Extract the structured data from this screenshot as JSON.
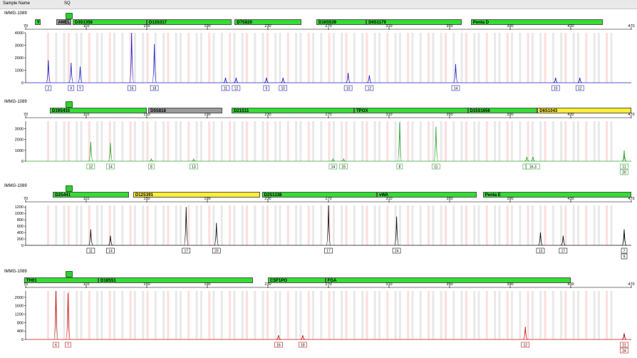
{
  "header": {
    "sample_name_label": "Sample Name",
    "sq_label": "SQ"
  },
  "colors": {
    "ladder_green": "#33dd33",
    "gray": "#999999",
    "yellow": "#ffee33",
    "highlight_bins": "#ffd6d6",
    "bins": "#e4e4e4"
  },
  "chart_data": [
    {
      "type": "line",
      "sample": "IMMG-1089",
      "dye_color": "#2222cc",
      "x_ticks": [
        70,
        110,
        150,
        190,
        230,
        270,
        310,
        350,
        390,
        430,
        470
      ],
      "y_ticks": [
        0,
        1000,
        2000,
        3000,
        4000
      ],
      "ylim": [
        0,
        4000
      ],
      "xlim": [
        70,
        470
      ],
      "markers": [
        {
          "name": "Yfi...",
          "start": 76,
          "end": 80,
          "color": "#33dd33"
        },
        {
          "name": "AMEL",
          "start": 90,
          "end": 100,
          "color": "#999999"
        },
        {
          "name": "D3S1358",
          "start": 101,
          "end": 150,
          "color": "#33dd33"
        },
        {
          "name": "D13S317",
          "start": 150,
          "end": 206,
          "color": "#33dd33"
        },
        {
          "name": "D7S820",
          "start": 208,
          "end": 252,
          "color": "#33dd33"
        },
        {
          "name": "D16S539",
          "start": 262,
          "end": 295,
          "color": "#33dd33"
        },
        {
          "name": "D6S1179",
          "start": 295,
          "end": 358,
          "color": "#33dd33"
        },
        {
          "name": "Penta D",
          "start": 364,
          "end": 451,
          "color": "#33dd33"
        }
      ],
      "peaks": [
        {
          "x": 85,
          "y": 1800,
          "label": "2"
        },
        {
          "x": 100,
          "y": 1600,
          "label": "X"
        },
        {
          "x": 106,
          "y": 1300,
          "label": "Y"
        },
        {
          "x": 140,
          "y": 4000,
          "label": "16"
        },
        {
          "x": 155,
          "y": 3100,
          "label": "18"
        },
        {
          "x": 202,
          "y": 400,
          "label": "11"
        },
        {
          "x": 209,
          "y": 400,
          "label": "12"
        },
        {
          "x": 229,
          "y": 400,
          "label": "9"
        },
        {
          "x": 240,
          "y": 400,
          "label": "10"
        },
        {
          "x": 283,
          "y": 800,
          "label": "10"
        },
        {
          "x": 297,
          "y": 600,
          "label": "12"
        },
        {
          "x": 354,
          "y": 1500,
          "label": "14"
        },
        {
          "x": 420,
          "y": 400,
          "label": "10"
        },
        {
          "x": 436,
          "y": 400,
          "label": "12"
        }
      ]
    },
    {
      "type": "line",
      "sample": "IMMG-1089",
      "dye_color": "#33aa33",
      "x_ticks": [
        70,
        110,
        150,
        190,
        230,
        270,
        310,
        350,
        390,
        430,
        470
      ],
      "y_ticks": [
        0,
        1000,
        2000,
        3000
      ],
      "ylim": [
        0,
        3700
      ],
      "xlim": [
        70,
        470
      ],
      "markers": [
        {
          "name": "D19S433",
          "start": 86,
          "end": 150,
          "color": "#33dd33"
        },
        {
          "name": "D5S818",
          "start": 151,
          "end": 200,
          "color": "#999999"
        },
        {
          "name": "D21S11",
          "start": 206,
          "end": 287,
          "color": "#33dd33"
        },
        {
          "name": "TPOX",
          "start": 287,
          "end": 362,
          "color": "#33dd33"
        },
        {
          "name": "D15S1656",
          "start": 362,
          "end": 408,
          "color": "#33dd33"
        },
        {
          "name": "D6S1043",
          "start": 408,
          "end": 470,
          "color": "#ffee33"
        }
      ],
      "peaks": [
        {
          "x": 113,
          "y": 1800,
          "label": "12"
        },
        {
          "x": 126,
          "y": 1700,
          "label": "14"
        },
        {
          "x": 153,
          "y": 200,
          "label": "8"
        },
        {
          "x": 181,
          "y": 200,
          "label": "13"
        },
        {
          "x": 273,
          "y": 200,
          "label": "14"
        },
        {
          "x": 280,
          "y": 200,
          "label": "15"
        },
        {
          "x": 317,
          "y": 3600,
          "label": "8"
        },
        {
          "x": 341,
          "y": 3200,
          "label": "11"
        },
        {
          "x": 401,
          "y": 400,
          "label": "16"
        },
        {
          "x": 405,
          "y": 400,
          "label": "16.3"
        },
        {
          "x": 468,
          "y": 1000,
          "label": "11"
        },
        {
          "x": 530,
          "y": 500,
          "label": "20"
        }
      ]
    },
    {
      "type": "line",
      "sample": "IMMG-1089",
      "dye_color": "#111111",
      "x_ticks": [
        70,
        110,
        150,
        190,
        230,
        270,
        310,
        350,
        390,
        430,
        470
      ],
      "y_ticks": [
        0,
        200,
        400,
        600,
        800,
        1000,
        1200
      ],
      "ylim": [
        0,
        1250
      ],
      "xlim": [
        70,
        470
      ],
      "markers": [
        {
          "name": "D2S441",
          "start": 88,
          "end": 138,
          "color": "#33dd33"
        },
        {
          "name": "D12S391",
          "start": 141,
          "end": 225,
          "color": "#ffee33"
        },
        {
          "name": "D2S1338",
          "start": 226,
          "end": 302,
          "color": "#33dd33"
        },
        {
          "name": "vWA",
          "start": 302,
          "end": 368,
          "color": "#33dd33"
        },
        {
          "name": "Penta E",
          "start": 372,
          "end": 470,
          "color": "#33dd33"
        }
      ],
      "peaks": [
        {
          "x": 113,
          "y": 500,
          "label": "11"
        },
        {
          "x": 126,
          "y": 300,
          "label": "14"
        },
        {
          "x": 176,
          "y": 1200,
          "label": "17"
        },
        {
          "x": 196,
          "y": 700,
          "label": "20"
        },
        {
          "x": 270,
          "y": 1250,
          "label": "17"
        },
        {
          "x": 315,
          "y": 900,
          "label": "24"
        },
        {
          "x": 410,
          "y": 400,
          "label": "13"
        },
        {
          "x": 425,
          "y": 300,
          "label": "17"
        },
        {
          "x": 504,
          "y": 500,
          "label": "7"
        },
        {
          "x": 521,
          "y": 450,
          "label": "9"
        }
      ]
    },
    {
      "type": "line",
      "sample": "IMMG-1089",
      "dye_color": "#cc1111",
      "x_ticks": [
        70,
        110,
        150,
        190,
        230,
        270,
        310,
        350,
        390,
        430,
        470
      ],
      "y_ticks": [
        0,
        400,
        800,
        1200,
        1600,
        2000
      ],
      "ylim": [
        0,
        2300
      ],
      "xlim": [
        70,
        470
      ],
      "markers": [
        {
          "name": "TH01",
          "start": 69,
          "end": 118,
          "color": "#33dd33"
        },
        {
          "name": "D18S51",
          "start": 118,
          "end": 220,
          "color": "#33dd33"
        },
        {
          "name": "CSF1PO",
          "start": 230,
          "end": 268,
          "color": "#33dd33"
        },
        {
          "name": "FGA",
          "start": 268,
          "end": 430,
          "color": "#33dd33"
        }
      ],
      "peaks": [
        {
          "x": 90,
          "y": 2300,
          "label": "6"
        },
        {
          "x": 98,
          "y": 2200,
          "label": "7"
        },
        {
          "x": 237,
          "y": 200,
          "label": "16"
        },
        {
          "x": 253,
          "y": 200,
          "label": "18"
        },
        {
          "x": 400,
          "y": 600,
          "label": "12"
        },
        {
          "x": 505,
          "y": 300,
          "label": "21"
        },
        {
          "x": 546,
          "y": 250,
          "label": "24"
        }
      ]
    }
  ]
}
